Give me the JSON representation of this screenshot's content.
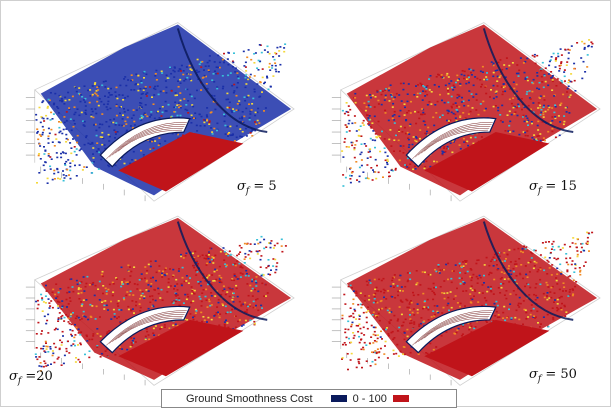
{
  "panels": [
    {
      "id": "p1",
      "sigma": "σ",
      "sub": "f",
      "eq": " = 5",
      "blue_ratio": 0.62
    },
    {
      "id": "p2",
      "sigma": "σ",
      "sub": "f",
      "eq": " = 15",
      "blue_ratio": 0.35
    },
    {
      "id": "p3",
      "sigma": "σ",
      "sub": "f",
      "eq": " =20",
      "blue_ratio": 0.22
    },
    {
      "id": "p4",
      "sigma": "σ",
      "sub": "f",
      "eq": " = 50",
      "blue_ratio": 0.07
    }
  ],
  "legend": {
    "title": "Ground Smoothness Cost",
    "range": "0  -  100",
    "low_color": "#0a1a5c",
    "high_color": "#c0141a"
  },
  "colors": {
    "blue": "#1a2fa8",
    "red": "#c0141a",
    "orange": "#f08a24",
    "yellow": "#f4d83a",
    "cyan": "#38c0d8",
    "dark": "#0a1a5c"
  }
}
